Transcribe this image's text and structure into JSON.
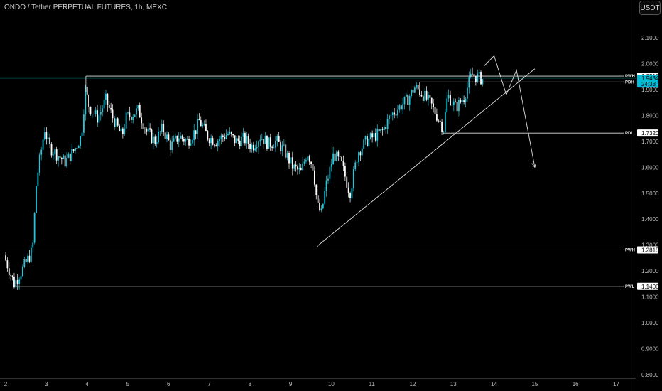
{
  "header": {
    "symbol_title": "ONDO / Tether PERPETUAL FUTURES, 1h, MEXC",
    "currency_label": "USDT"
  },
  "chart_data": {
    "type": "candlestick",
    "x_ticks": [
      "2",
      "3",
      "4",
      "5",
      "6",
      "7",
      "8",
      "9",
      "10",
      "11",
      "12",
      "13",
      "14",
      "15",
      "16",
      "17"
    ],
    "y_ticks": [
      "0.8000",
      "0.9000",
      "1.0000",
      "1.1000",
      "1.2000",
      "1.3000",
      "1.4000",
      "1.5000",
      "1.6000",
      "1.7000",
      "1.8000",
      "1.9000",
      "2.0000",
      "2.1000"
    ],
    "ylim": [
      0.8,
      2.13
    ],
    "xlim": [
      2.0,
      17.2
    ],
    "grid": false,
    "colors": {
      "up": "#26c6da",
      "down": "#ffffff",
      "level": "#e0e0e0",
      "current": "#00bcd4",
      "background": "#000000"
    },
    "current_price": {
      "value": 1.9434,
      "label": "1.9434",
      "countdown": "24:33"
    },
    "levels": [
      {
        "name": "PWH",
        "value": 1.9517,
        "label": "1.9517",
        "x_start": 3.97
      },
      {
        "name": "PDH",
        "value": 1.9291,
        "label": "1.9291",
        "x_start": 12.17
      },
      {
        "name": "PDL",
        "value": 1.732,
        "label": "1.7320",
        "x_start": 12.75
      },
      {
        "name": "PWH",
        "value": 1.2815,
        "label": "1.2815",
        "x_start": 2.0
      },
      {
        "name": "PWL",
        "value": 1.1406,
        "label": "1.1406",
        "x_start": 2.25
      }
    ],
    "trendline": {
      "from": [
        9.65,
        1.295
      ],
      "to": [
        15.0,
        1.98
      ]
    },
    "projection": [
      [
        13.75,
        1.99
      ],
      [
        14.0,
        2.03
      ],
      [
        14.3,
        1.88
      ],
      [
        14.55,
        1.975
      ],
      [
        15.0,
        1.6
      ]
    ],
    "price_path": [
      [
        2.0,
        1.26
      ],
      [
        2.25,
        1.15
      ],
      [
        2.5,
        1.22
      ],
      [
        2.7,
        1.28
      ],
      [
        2.8,
        1.55
      ],
      [
        3.0,
        1.75
      ],
      [
        3.1,
        1.68
      ],
      [
        3.3,
        1.65
      ],
      [
        3.5,
        1.62
      ],
      [
        3.7,
        1.66
      ],
      [
        3.9,
        1.72
      ],
      [
        4.0,
        1.9
      ],
      [
        4.1,
        1.83
      ],
      [
        4.3,
        1.79
      ],
      [
        4.5,
        1.86
      ],
      [
        4.7,
        1.78
      ],
      [
        4.9,
        1.72
      ],
      [
        5.0,
        1.79
      ],
      [
        5.3,
        1.82
      ],
      [
        5.5,
        1.74
      ],
      [
        5.7,
        1.7
      ],
      [
        5.9,
        1.75
      ],
      [
        6.1,
        1.68
      ],
      [
        6.3,
        1.72
      ],
      [
        6.5,
        1.7
      ],
      [
        6.7,
        1.74
      ],
      [
        6.8,
        1.78
      ],
      [
        7.0,
        1.72
      ],
      [
        7.2,
        1.7
      ],
      [
        7.5,
        1.73
      ],
      [
        7.7,
        1.7
      ],
      [
        7.9,
        1.71
      ],
      [
        8.1,
        1.68
      ],
      [
        8.3,
        1.72
      ],
      [
        8.5,
        1.69
      ],
      [
        8.7,
        1.7
      ],
      [
        8.9,
        1.66
      ],
      [
        9.1,
        1.6
      ],
      [
        9.3,
        1.58
      ],
      [
        9.45,
        1.66
      ],
      [
        9.6,
        1.6
      ],
      [
        9.7,
        1.45
      ],
      [
        9.8,
        1.42
      ],
      [
        9.9,
        1.52
      ],
      [
        10.1,
        1.65
      ],
      [
        10.3,
        1.61
      ],
      [
        10.5,
        1.5
      ],
      [
        10.7,
        1.66
      ],
      [
        10.9,
        1.7
      ],
      [
        11.1,
        1.72
      ],
      [
        11.3,
        1.74
      ],
      [
        11.5,
        1.8
      ],
      [
        11.7,
        1.83
      ],
      [
        11.9,
        1.86
      ],
      [
        12.1,
        1.91
      ],
      [
        12.3,
        1.88
      ],
      [
        12.5,
        1.84
      ],
      [
        12.7,
        1.78
      ],
      [
        12.8,
        1.75
      ],
      [
        12.9,
        1.88
      ],
      [
        13.1,
        1.83
      ],
      [
        13.3,
        1.87
      ],
      [
        13.5,
        1.96
      ],
      [
        13.6,
        1.95
      ],
      [
        13.75,
        1.94
      ]
    ]
  }
}
